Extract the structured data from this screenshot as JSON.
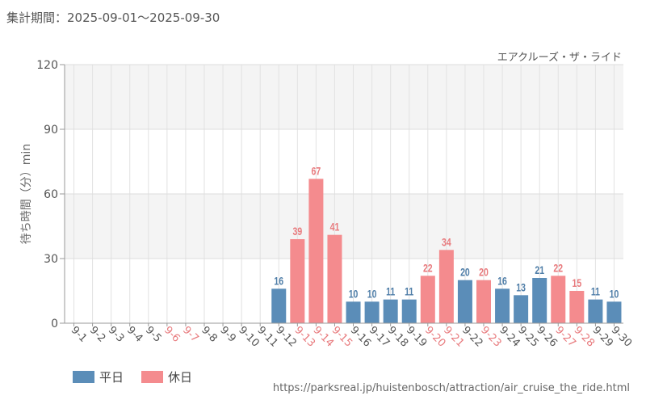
{
  "header": {
    "period": "集計期間：2025-09-01～2025-09-30"
  },
  "attraction_name": "エアクルーズ・ザ・ライド",
  "source_url": "https://parksreal.jp/huistenbosch/attraction/air_cruise_the_ride.html",
  "colors": {
    "weekday": "#5b8db8",
    "holiday": "#f48b8e",
    "weekday_label": "#4f7ea8",
    "holiday_label": "#e87a7d"
  },
  "legend": {
    "weekday": "平日",
    "holiday": "休日"
  },
  "chart_data": {
    "type": "bar",
    "ylabel": "待ち時間（分）min",
    "ylim": [
      0,
      120
    ],
    "yticks": [
      0,
      30,
      60,
      90,
      120
    ],
    "grid": true,
    "legend_placement": "bottom-left",
    "categories": [
      "9-1",
      "9-2",
      "9-3",
      "9-4",
      "9-5",
      "9-6",
      "9-7",
      "9-8",
      "9-9",
      "9-10",
      "9-11",
      "9-12",
      "9-13",
      "9-14",
      "9-15",
      "9-16",
      "9-17",
      "9-18",
      "9-19",
      "9-20",
      "9-21",
      "9-22",
      "9-23",
      "9-24",
      "9-25",
      "9-26",
      "9-27",
      "9-28",
      "9-29",
      "9-30"
    ],
    "day_type": [
      "weekday",
      "weekday",
      "weekday",
      "weekday",
      "weekday",
      "holiday",
      "holiday",
      "weekday",
      "weekday",
      "weekday",
      "weekday",
      "weekday",
      "holiday",
      "holiday",
      "holiday",
      "weekday",
      "weekday",
      "weekday",
      "weekday",
      "holiday",
      "holiday",
      "weekday",
      "holiday",
      "weekday",
      "weekday",
      "weekday",
      "holiday",
      "holiday",
      "weekday",
      "weekday"
    ],
    "values": [
      null,
      null,
      null,
      null,
      null,
      null,
      null,
      null,
      null,
      null,
      null,
      16,
      39,
      67,
      41,
      10,
      10,
      11,
      11,
      22,
      34,
      20,
      20,
      16,
      13,
      21,
      22,
      15,
      11,
      10
    ]
  }
}
